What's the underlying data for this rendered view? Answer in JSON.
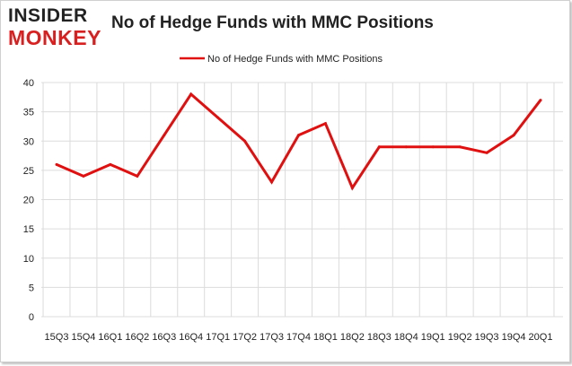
{
  "logo": {
    "top": "INSIDER",
    "bottom": "MONKEY"
  },
  "chart_data": {
    "type": "line",
    "title": "No of Hedge Funds with MMC Positions",
    "xlabel": "",
    "ylabel": "",
    "legend": "top-center",
    "grid": true,
    "ylim": [
      0,
      40
    ],
    "yticks": [
      0,
      5,
      10,
      15,
      20,
      25,
      30,
      35,
      40
    ],
    "categories": [
      "15Q3",
      "15Q4",
      "16Q1",
      "16Q2",
      "16Q3",
      "16Q4",
      "17Q1",
      "17Q2",
      "17Q3",
      "17Q4",
      "18Q1",
      "18Q2",
      "18Q3",
      "18Q4",
      "19Q1",
      "19Q2",
      "19Q3",
      "19Q4",
      "20Q1"
    ],
    "series": [
      {
        "name": "No of Hedge Funds with MMC Positions",
        "color": "#e01010",
        "values": [
          26,
          24,
          26,
          24,
          31,
          38,
          34,
          30,
          23,
          31,
          33,
          22,
          29,
          29,
          29,
          29,
          28,
          31,
          37
        ]
      }
    ]
  }
}
